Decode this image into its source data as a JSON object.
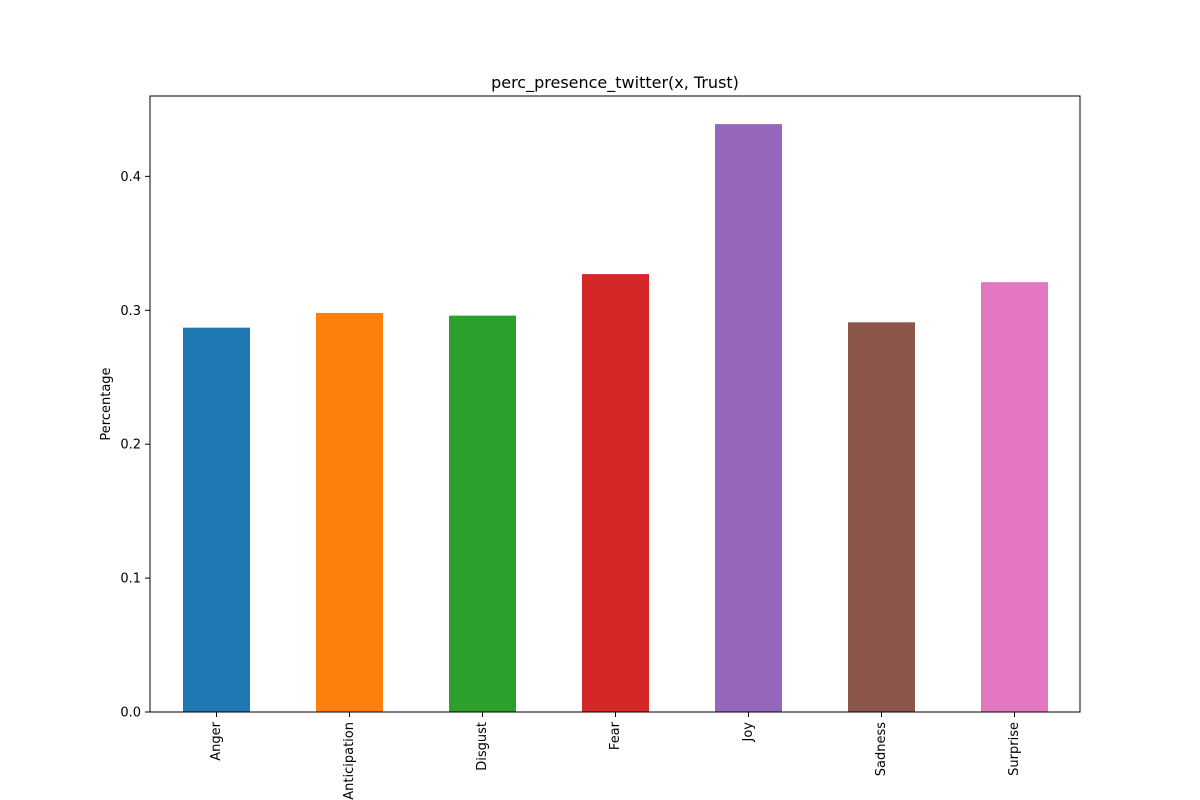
{
  "chart_data": {
    "type": "bar",
    "title": "perc_presence_twitter(x, Trust)",
    "xlabel": "",
    "ylabel": "Percentage",
    "ylim": [
      0,
      0.46
    ],
    "yticks": [
      0.0,
      0.1,
      0.2,
      0.3,
      0.4
    ],
    "ytick_labels": [
      "0.0",
      "0.1",
      "0.2",
      "0.3",
      "0.4"
    ],
    "grid": false,
    "categories": [
      "Anger",
      "Anticipation",
      "Disgust",
      "Fear",
      "Joy",
      "Sadness",
      "Surprise"
    ],
    "values": [
      0.287,
      0.298,
      0.296,
      0.327,
      0.439,
      0.291,
      0.321
    ],
    "colors": [
      "#1f77b4",
      "#ff7f0e",
      "#2ca02c",
      "#d62728",
      "#9467bd",
      "#8c564b",
      "#e377c2"
    ]
  }
}
